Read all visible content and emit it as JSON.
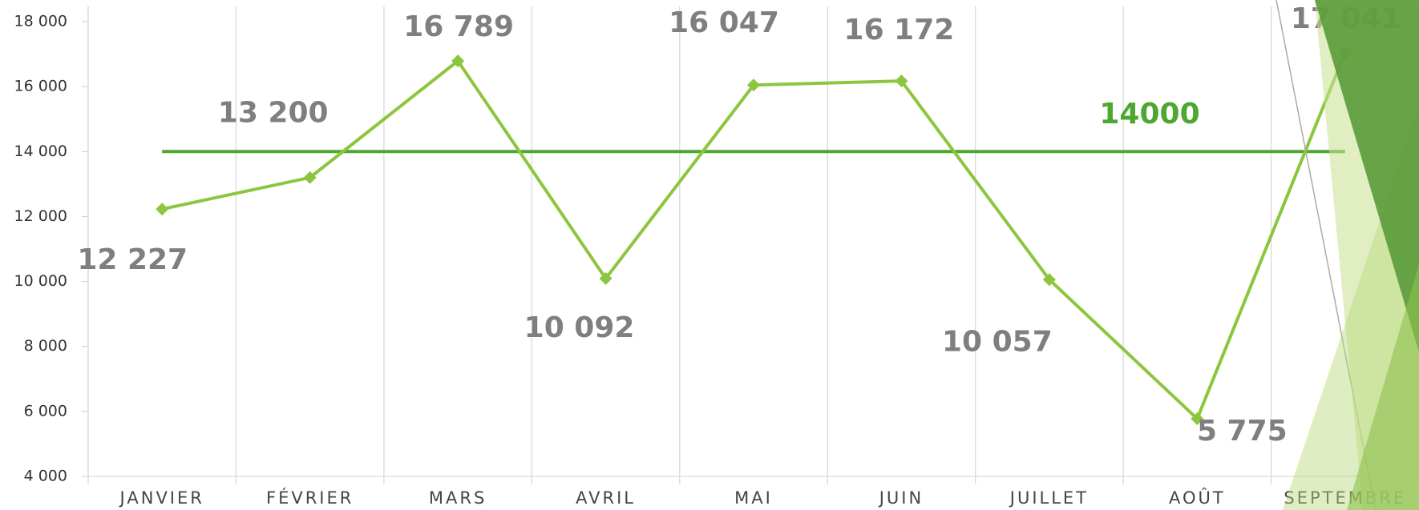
{
  "chart_data": {
    "type": "line",
    "categories": [
      "JANVIER",
      "FÉVRIER",
      "MARS",
      "AVRIL",
      "MAI",
      "JUIN",
      "JUILLET",
      "AOÛT",
      "SEPTEMBRE"
    ],
    "series": [
      {
        "color": "#8cc63e",
        "values": [
          12227,
          13200,
          16789,
          10092,
          16047,
          16172,
          10057,
          5775,
          17041
        ],
        "value_labels": [
          "12 227",
          "13 200",
          "16 789",
          "10 092",
          "16 047",
          "16 172",
          "10 057",
          "5 775",
          "17 041"
        ]
      }
    ],
    "reference_line": {
      "value": 14000,
      "color": "#4ea72e"
    },
    "ylim": [
      4000,
      18000
    ],
    "yticks": [
      {
        "value": 4000,
        "label": "4 000"
      },
      {
        "value": 6000,
        "label": "6 000"
      },
      {
        "value": 8000,
        "label": "8 000"
      },
      {
        "value": 10000,
        "label": "10 000"
      },
      {
        "value": 12000,
        "label": "12 000"
      },
      {
        "value": 14000,
        "label": "14 000"
      },
      {
        "value": 16000,
        "label": "16 000"
      },
      {
        "value": 18000,
        "label": "18 000"
      }
    ],
    "grid": true
  }
}
